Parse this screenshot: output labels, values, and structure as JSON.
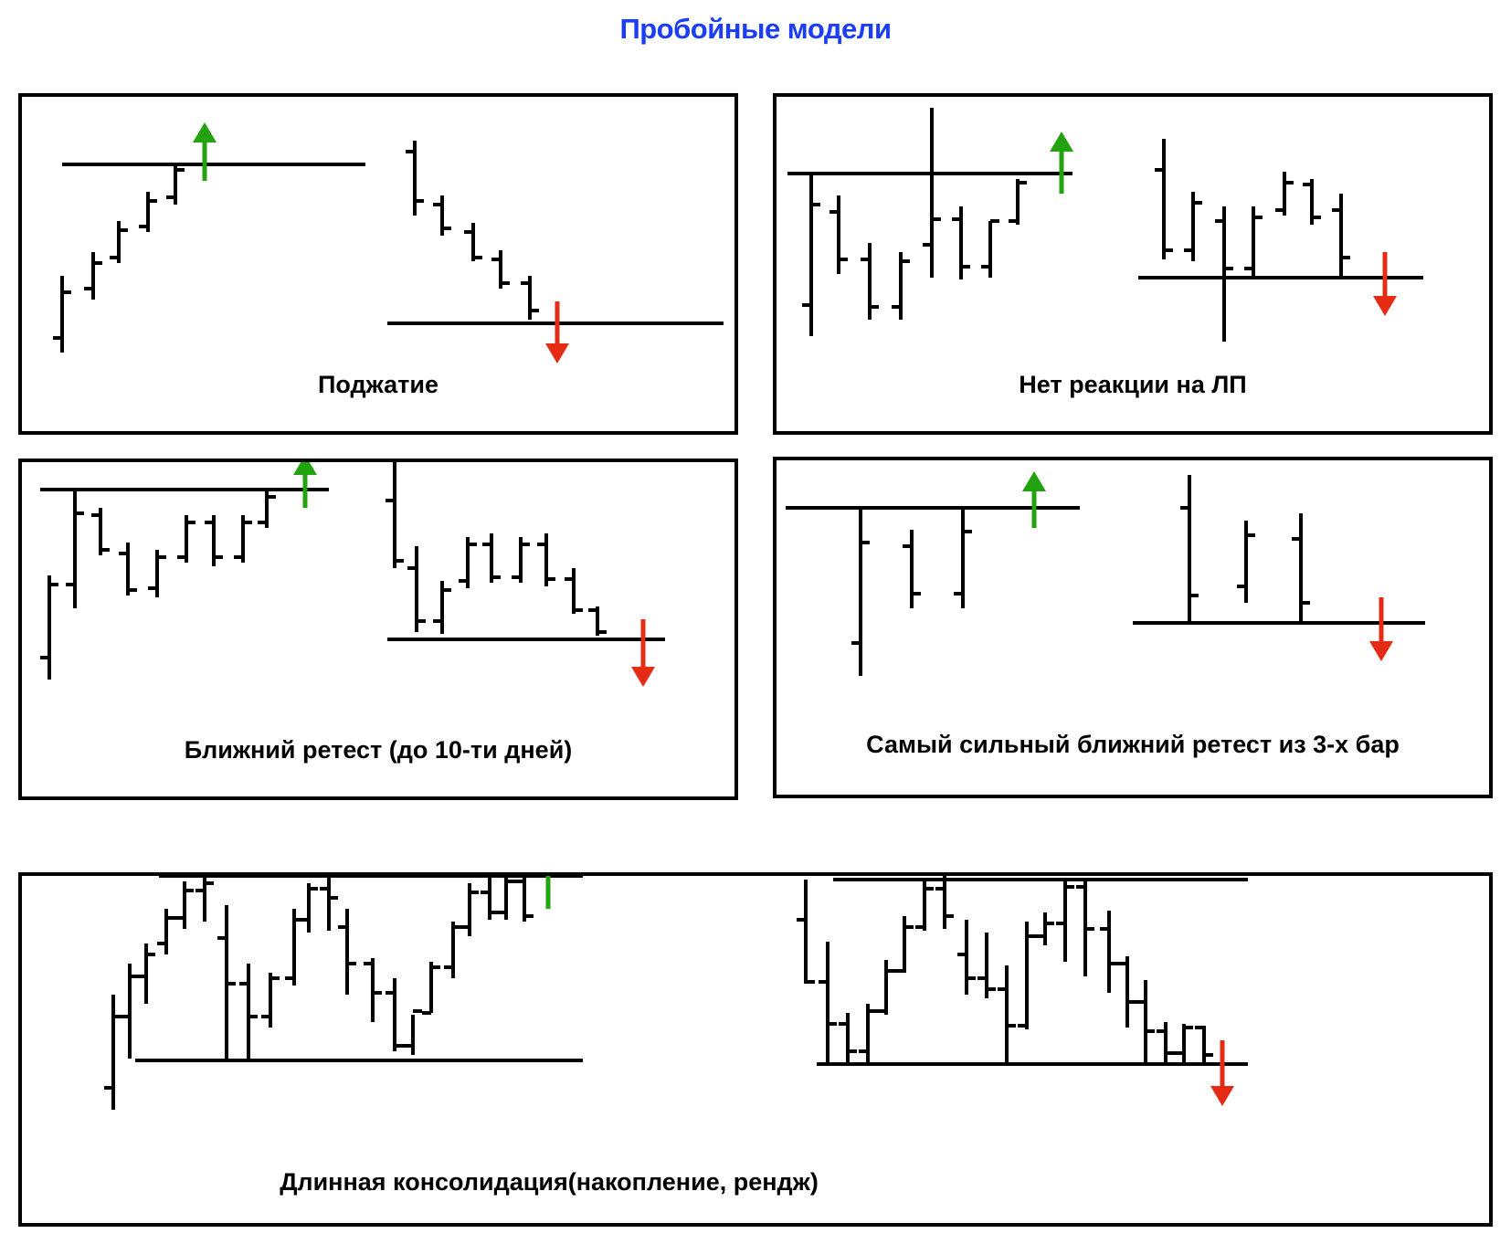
{
  "title": "Пробойные модели",
  "colors": {
    "title": "#1b3df5",
    "up_arrow": "#22a20f",
    "down_arrow": "#e62b14",
    "ink": "#000000"
  },
  "panels": {
    "squeeze": {
      "label": "Поджатие"
    },
    "no_reaction": {
      "label": "Нет реакции на ЛП"
    },
    "near_retest": {
      "label": "Ближний ретест (до 10-ти дней)"
    },
    "strongest_retest": {
      "label": "Самый сильный ближний ретест из 3-х бар"
    },
    "long_consolidation": {
      "label": "Длинная консолидация(накопление, рендж)"
    }
  },
  "icons": [
    "up-arrow-icon",
    "down-arrow-icon"
  ]
}
